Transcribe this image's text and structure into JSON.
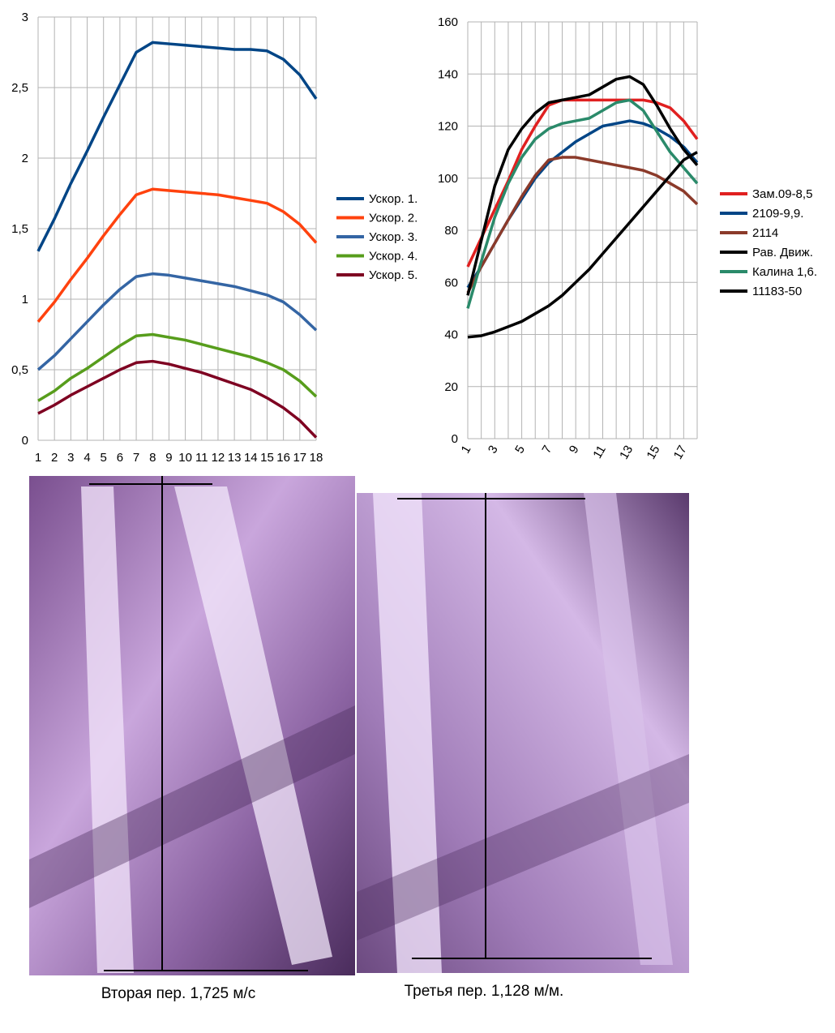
{
  "chart_data": [
    {
      "type": "line",
      "categories": [
        "1",
        "2",
        "3",
        "4",
        "5",
        "6",
        "7",
        "8",
        "9",
        "10",
        "11",
        "12",
        "13",
        "14",
        "15",
        "16",
        "17",
        "18"
      ],
      "ylim": [
        0,
        3
      ],
      "yticks": [
        0,
        {
          "value": 0.5,
          "label": "0,5"
        },
        1,
        {
          "value": 1.5,
          "label": "1,5"
        },
        2,
        {
          "value": 2.5,
          "label": "2,5"
        },
        3
      ],
      "grid": true,
      "legend": "right",
      "series": [
        {
          "name": "Ускор. 1.",
          "color": "#004586",
          "values": [
            1.34,
            1.57,
            1.82,
            2.05,
            2.29,
            2.52,
            2.75,
            2.82,
            2.81,
            2.8,
            2.79,
            2.78,
            2.77,
            2.77,
            2.76,
            2.7,
            2.59,
            2.42
          ]
        },
        {
          "name": "Ускор. 2.",
          "color": "#ff420e",
          "values": [
            0.84,
            0.98,
            1.14,
            1.29,
            1.45,
            1.6,
            1.74,
            1.78,
            1.77,
            1.76,
            1.75,
            1.74,
            1.72,
            1.7,
            1.68,
            1.62,
            1.53,
            1.4
          ]
        },
        {
          "name": "Ускор. 3.",
          "color": "#3465a4",
          "values": [
            0.5,
            0.6,
            0.72,
            0.84,
            0.96,
            1.07,
            1.16,
            1.18,
            1.17,
            1.15,
            1.13,
            1.11,
            1.09,
            1.06,
            1.03,
            0.98,
            0.89,
            0.78
          ]
        },
        {
          "name": "Ускор. 4.",
          "color": "#579d1c",
          "values": [
            0.28,
            0.35,
            0.44,
            0.51,
            0.59,
            0.67,
            0.74,
            0.75,
            0.73,
            0.71,
            0.68,
            0.65,
            0.62,
            0.59,
            0.55,
            0.5,
            0.42,
            0.31
          ]
        },
        {
          "name": "Ускор. 5.",
          "color": "#7e0021",
          "values": [
            0.19,
            0.25,
            0.32,
            0.38,
            0.44,
            0.5,
            0.55,
            0.56,
            0.54,
            0.51,
            0.48,
            0.44,
            0.4,
            0.36,
            0.3,
            0.23,
            0.14,
            0.02
          ]
        }
      ]
    },
    {
      "type": "line",
      "categories": [
        "1",
        null,
        "3",
        null,
        "5",
        null,
        "7",
        null,
        "9",
        null,
        "11",
        null,
        "13",
        null,
        "15",
        null,
        "17",
        null
      ],
      "ylim": [
        0,
        160
      ],
      "yticks": [
        0,
        20,
        40,
        60,
        80,
        100,
        120,
        140,
        160
      ],
      "grid": true,
      "legend": "right",
      "series": [
        {
          "name": "Зам.09-8,5",
          "color": "#e02020",
          "values": [
            66,
            77,
            88,
            99,
            111,
            120,
            128,
            130,
            130,
            130,
            130,
            130,
            130,
            130,
            129,
            127,
            122,
            115
          ]
        },
        {
          "name": "2109-9,9.",
          "color": "#004586",
          "values": [
            58,
            66,
            75,
            84,
            92,
            100,
            106,
            110,
            114,
            117,
            120,
            121,
            122,
            121,
            119,
            116,
            112,
            106
          ]
        },
        {
          "name": "2114",
          "color": "#8b3a2a",
          "values": [
            56,
            66,
            75,
            84,
            93,
            101,
            107,
            108,
            108,
            107,
            106,
            105,
            104,
            103,
            101,
            98,
            95,
            90
          ]
        },
        {
          "name": "Рав. Движ.",
          "color": "#000000",
          "values": [
            55,
            76,
            97,
            111,
            119,
            125,
            129,
            130,
            131,
            132,
            135,
            138,
            139,
            136,
            128,
            119,
            111,
            105
          ]
        },
        {
          "name": "Калина 1,6.",
          "color": "#2a8a6a",
          "values": [
            50,
            68,
            85,
            98,
            108,
            115,
            119,
            121,
            122,
            123,
            126,
            129,
            130,
            126,
            118,
            110,
            104,
            98
          ]
        },
        {
          "name": "11183-50",
          "color": "#000000",
          "values": [
            39,
            39.5,
            41,
            43,
            45,
            48,
            51,
            55,
            60,
            65,
            71,
            77,
            83,
            89,
            95,
            101,
            107,
            110
          ]
        }
      ]
    }
  ],
  "captions": [
    "Вторая пер. 1,725 м/с",
    "Третья пер. 1,128 м/м."
  ]
}
